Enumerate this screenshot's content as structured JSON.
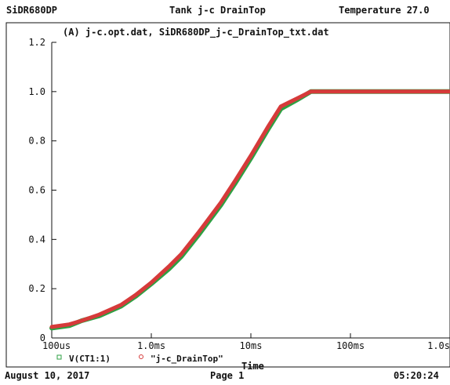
{
  "header": {
    "left": "SiDR680DP",
    "center": "Tank j-c DrainTop",
    "right": "Temperature 27.0"
  },
  "footer": {
    "date": "August 10, 2017",
    "page": "Page 1",
    "time": "05:20:24"
  },
  "chart_data": {
    "type": "line",
    "title": "(A) j-c.opt.dat, SiDR680DP_j-c_DrainTop_txt.dat",
    "xlabel": "Time",
    "ylabel": "",
    "x_scale": "log",
    "xlim": [
      0.0001,
      1.0
    ],
    "ylim": [
      0,
      1.2
    ],
    "x_ticks": [
      {
        "value": 0.0001,
        "label": "100us"
      },
      {
        "value": 0.001,
        "label": "1.0ms"
      },
      {
        "value": 0.01,
        "label": "10ms"
      },
      {
        "value": 0.1,
        "label": "100ms"
      },
      {
        "value": 1.0,
        "label": "1.0s"
      }
    ],
    "y_ticks": [
      {
        "value": 0,
        "label": "0"
      },
      {
        "value": 0.2,
        "label": "0.2"
      },
      {
        "value": 0.4,
        "label": "0.4"
      },
      {
        "value": 0.6,
        "label": "0.6"
      },
      {
        "value": 0.8,
        "label": "0.8"
      },
      {
        "value": 1.0,
        "label": "1.0"
      },
      {
        "value": 1.2,
        "label": "1.2"
      }
    ],
    "grid": false,
    "legend_position": "bottom-left",
    "series": [
      {
        "name": "V(CT1:1)",
        "color": "#2ea043",
        "marker": "square",
        "x": [
          0.0001,
          0.00015,
          0.0002,
          0.0003,
          0.0005,
          0.0007,
          0.001,
          0.0015,
          0.002,
          0.003,
          0.005,
          0.007,
          0.01,
          0.015,
          0.02,
          0.03,
          0.04,
          0.05,
          0.1,
          0.2,
          0.5,
          1.0
        ],
        "values": [
          0.04,
          0.05,
          0.07,
          0.09,
          0.13,
          0.17,
          0.22,
          0.28,
          0.33,
          0.42,
          0.54,
          0.63,
          0.73,
          0.85,
          0.93,
          0.97,
          1.0,
          1.0,
          1.0,
          1.0,
          1.0,
          1.0
        ]
      },
      {
        "name": "\"j-c_DrainTop\"",
        "color": "#d63a3a",
        "marker": "circle",
        "x": [
          0.0001,
          0.00015,
          0.0002,
          0.0003,
          0.0005,
          0.0007,
          0.001,
          0.0015,
          0.002,
          0.003,
          0.005,
          0.007,
          0.01,
          0.015,
          0.02,
          0.03,
          0.04,
          0.05,
          0.1,
          0.2,
          0.5,
          1.0
        ],
        "values": [
          0.045,
          0.055,
          0.07,
          0.095,
          0.135,
          0.175,
          0.225,
          0.29,
          0.34,
          0.43,
          0.55,
          0.64,
          0.74,
          0.86,
          0.94,
          0.975,
          1.0,
          1.0,
          1.0,
          1.0,
          1.0,
          1.0
        ]
      }
    ]
  }
}
